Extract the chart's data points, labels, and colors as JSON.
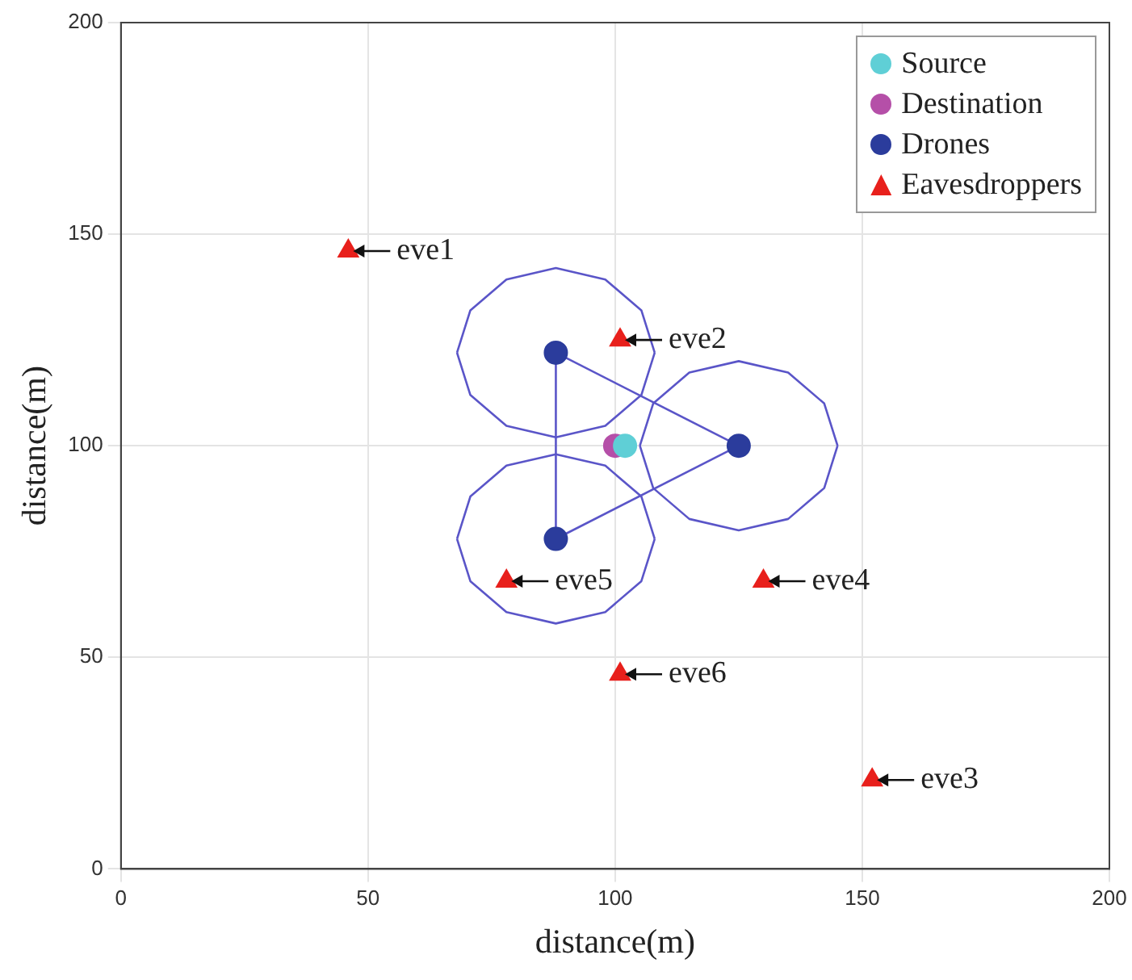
{
  "chart_data": {
    "type": "scatter",
    "xlabel": "distance(m)",
    "ylabel": "distance(m)",
    "xlim": [
      0,
      200
    ],
    "ylim": [
      0,
      200
    ],
    "xticks": [
      0,
      50,
      100,
      150,
      200
    ],
    "yticks": [
      0,
      50,
      100,
      150,
      200
    ],
    "grid": true,
    "legend": "top right",
    "series": [
      {
        "name": "Source",
        "color": "#5fcfd6",
        "marker": "circle",
        "x": [
          102
        ],
        "values": [
          100
        ]
      },
      {
        "name": "Destination",
        "color": "#b54fa8",
        "marker": "circle",
        "x": [
          100
        ],
        "values": [
          100
        ]
      },
      {
        "name": "Drones",
        "color": "#2b3c9c",
        "marker": "circle",
        "x": [
          88,
          125,
          88
        ],
        "values": [
          122,
          100,
          78
        ]
      },
      {
        "name": "Eavesdroppers",
        "color": "#e8201c",
        "marker": "triangle",
        "x": [
          46,
          101,
          152,
          130,
          78,
          101
        ],
        "values": [
          146,
          125,
          21,
          68,
          68,
          46
        ]
      },
      {
        "type": "line",
        "color": "#5a55c8",
        "marker": "none",
        "x": [
          88,
          125
        ],
        "values": [
          122,
          100
        ]
      },
      {
        "type": "line",
        "color": "#5a55c8",
        "marker": "none",
        "x": [
          88,
          125
        ],
        "values": [
          78,
          100
        ]
      },
      {
        "type": "line",
        "color": "#5a55c8",
        "marker": "none",
        "x": [
          88,
          88
        ],
        "values": [
          78,
          122
        ]
      },
      {
        "type": "line",
        "color": "#5a55c8",
        "marker": "none",
        "x": [
          68,
          70.7,
          78,
          88,
          98,
          105.3,
          108
        ],
        "values": [
          122,
          132,
          139.3,
          142,
          139.3,
          132,
          122
        ]
      },
      {
        "type": "line",
        "color": "#5a55c8",
        "marker": "none",
        "x": [
          68,
          70.7,
          78,
          88,
          98,
          105.3,
          108
        ],
        "values": [
          122,
          112,
          104.7,
          102,
          104.7,
          112,
          122
        ]
      },
      {
        "type": "line",
        "color": "#5a55c8",
        "marker": "none",
        "x": [
          105,
          107.7,
          115,
          125,
          135,
          142.3,
          145
        ],
        "values": [
          100,
          110,
          117.3,
          120,
          117.3,
          110,
          100
        ]
      },
      {
        "type": "line",
        "color": "#5a55c8",
        "marker": "none",
        "x": [
          105,
          107.7,
          115,
          125,
          135,
          142.3,
          145
        ],
        "values": [
          100,
          90,
          82.7,
          80,
          82.7,
          90,
          100
        ]
      },
      {
        "type": "line",
        "color": "#5a55c8",
        "marker": "none",
        "x": [
          68,
          70.7,
          78,
          88,
          98,
          105.3,
          108
        ],
        "values": [
          78,
          88,
          95.3,
          98,
          95.3,
          88,
          78
        ]
      },
      {
        "type": "line",
        "color": "#5a55c8",
        "marker": "none",
        "x": [
          68,
          70.7,
          78,
          88,
          98,
          105.3,
          108
        ],
        "values": [
          78,
          68,
          60.7,
          58,
          60.7,
          68,
          78
        ]
      }
    ],
    "annotations": [
      {
        "text": "eve1",
        "x": 46,
        "y": 146
      },
      {
        "text": "eve2",
        "x": 101,
        "y": 125
      },
      {
        "text": "eve3",
        "x": 152,
        "y": 21
      },
      {
        "text": "eve4",
        "x": 130,
        "y": 68
      },
      {
        "text": "eve5",
        "x": 78,
        "y": 68
      },
      {
        "text": "eve6",
        "x": 101,
        "y": 46
      }
    ]
  }
}
